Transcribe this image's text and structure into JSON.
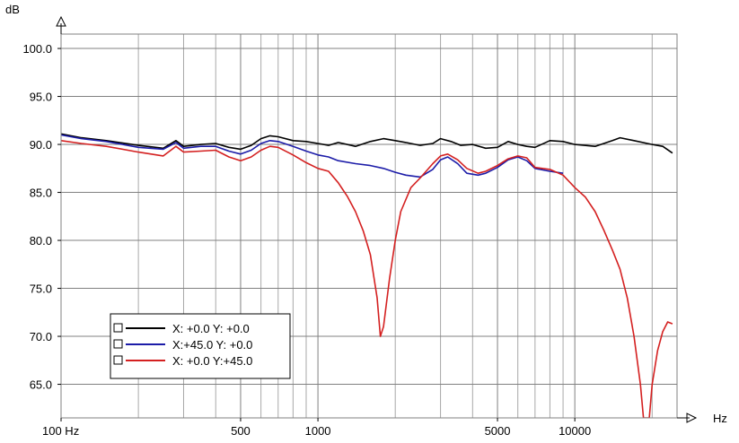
{
  "chart_data": {
    "type": "line",
    "ylabel": "dB",
    "xlabel": "Hz",
    "x_scale": "log",
    "xlim": [
      100,
      25000
    ],
    "ylim": [
      61.5,
      101.5
    ],
    "y_ticks": [
      {
        "value": 100,
        "label": "100.0"
      },
      {
        "value": 95,
        "label": "95.0"
      },
      {
        "value": 90,
        "label": "90.0"
      },
      {
        "value": 85,
        "label": "85.0"
      },
      {
        "value": 80,
        "label": "80.0"
      },
      {
        "value": 75,
        "label": "75.0"
      },
      {
        "value": 70,
        "label": "70.0"
      },
      {
        "value": 65,
        "label": "65.0"
      }
    ],
    "x_ticks": [
      {
        "value": 100,
        "label": "100 Hz"
      },
      {
        "value": 500,
        "label": "500"
      },
      {
        "value": 1000,
        "label": "1000"
      },
      {
        "value": 5000,
        "label": "5000"
      },
      {
        "value": 10000,
        "label": "10000"
      }
    ],
    "grid": true,
    "legend_position": "bottom-left",
    "series": [
      {
        "name": "X:  +0.0  Y:  +0.0",
        "color": "#000000",
        "points": [
          [
            100,
            91.1
          ],
          [
            120,
            90.7
          ],
          [
            150,
            90.4
          ],
          [
            200,
            89.9
          ],
          [
            250,
            89.6
          ],
          [
            280,
            90.4
          ],
          [
            300,
            89.8
          ],
          [
            350,
            90.0
          ],
          [
            400,
            90.1
          ],
          [
            450,
            89.7
          ],
          [
            500,
            89.5
          ],
          [
            550,
            89.9
          ],
          [
            600,
            90.6
          ],
          [
            650,
            90.9
          ],
          [
            700,
            90.8
          ],
          [
            800,
            90.4
          ],
          [
            900,
            90.3
          ],
          [
            1000,
            90.1
          ],
          [
            1100,
            89.9
          ],
          [
            1200,
            90.2
          ],
          [
            1400,
            89.8
          ],
          [
            1600,
            90.3
          ],
          [
            1800,
            90.6
          ],
          [
            2000,
            90.4
          ],
          [
            2200,
            90.2
          ],
          [
            2500,
            89.9
          ],
          [
            2800,
            90.1
          ],
          [
            3000,
            90.6
          ],
          [
            3300,
            90.3
          ],
          [
            3600,
            89.9
          ],
          [
            4000,
            90.0
          ],
          [
            4500,
            89.6
          ],
          [
            5000,
            89.7
          ],
          [
            5500,
            90.3
          ],
          [
            6000,
            90.0
          ],
          [
            6500,
            89.8
          ],
          [
            7000,
            89.7
          ],
          [
            8000,
            90.4
          ],
          [
            9000,
            90.3
          ],
          [
            10000,
            90.0
          ],
          [
            12000,
            89.8
          ],
          [
            14000,
            90.4
          ],
          [
            15000,
            90.7
          ],
          [
            17000,
            90.4
          ],
          [
            20000,
            90.0
          ],
          [
            22000,
            89.8
          ],
          [
            24000,
            89.1
          ]
        ]
      },
      {
        "name": "X:+45.0  Y:  +0.0",
        "color": "#1c1ca8",
        "points": [
          [
            100,
            91.0
          ],
          [
            120,
            90.6
          ],
          [
            150,
            90.3
          ],
          [
            200,
            89.7
          ],
          [
            250,
            89.5
          ],
          [
            280,
            90.2
          ],
          [
            300,
            89.6
          ],
          [
            350,
            89.8
          ],
          [
            400,
            89.8
          ],
          [
            450,
            89.3
          ],
          [
            500,
            89.0
          ],
          [
            550,
            89.4
          ],
          [
            600,
            90.1
          ],
          [
            650,
            90.4
          ],
          [
            700,
            90.3
          ],
          [
            800,
            89.8
          ],
          [
            900,
            89.3
          ],
          [
            1000,
            88.9
          ],
          [
            1100,
            88.7
          ],
          [
            1200,
            88.3
          ],
          [
            1400,
            88.0
          ],
          [
            1600,
            87.8
          ],
          [
            1800,
            87.5
          ],
          [
            2000,
            87.1
          ],
          [
            2200,
            86.8
          ],
          [
            2500,
            86.6
          ],
          [
            2800,
            87.4
          ],
          [
            3000,
            88.4
          ],
          [
            3200,
            88.7
          ],
          [
            3500,
            88.0
          ],
          [
            3800,
            87.0
          ],
          [
            4200,
            86.8
          ],
          [
            4500,
            87.0
          ],
          [
            5000,
            87.6
          ],
          [
            5500,
            88.4
          ],
          [
            6000,
            88.7
          ],
          [
            6500,
            88.3
          ],
          [
            7000,
            87.5
          ],
          [
            8000,
            87.2
          ],
          [
            9000,
            87.0
          ]
        ]
      },
      {
        "name": "X:  +0.0  Y:+45.0",
        "color": "#d42020",
        "points": [
          [
            100,
            90.4
          ],
          [
            120,
            90.1
          ],
          [
            150,
            89.8
          ],
          [
            200,
            89.2
          ],
          [
            250,
            88.8
          ],
          [
            280,
            89.8
          ],
          [
            300,
            89.2
          ],
          [
            350,
            89.3
          ],
          [
            400,
            89.4
          ],
          [
            450,
            88.7
          ],
          [
            500,
            88.3
          ],
          [
            550,
            88.7
          ],
          [
            600,
            89.4
          ],
          [
            650,
            89.8
          ],
          [
            700,
            89.7
          ],
          [
            800,
            88.9
          ],
          [
            900,
            88.1
          ],
          [
            1000,
            87.5
          ],
          [
            1100,
            87.2
          ],
          [
            1200,
            86.0
          ],
          [
            1300,
            84.6
          ],
          [
            1400,
            83.0
          ],
          [
            1500,
            81.0
          ],
          [
            1600,
            78.5
          ],
          [
            1700,
            74.0
          ],
          [
            1750,
            70.0
          ],
          [
            1800,
            71.0
          ],
          [
            1900,
            76.0
          ],
          [
            2000,
            80.0
          ],
          [
            2100,
            83.0
          ],
          [
            2300,
            85.5
          ],
          [
            2500,
            86.5
          ],
          [
            2800,
            88.0
          ],
          [
            3000,
            88.8
          ],
          [
            3200,
            89.0
          ],
          [
            3500,
            88.4
          ],
          [
            3800,
            87.5
          ],
          [
            4200,
            87.0
          ],
          [
            4500,
            87.2
          ],
          [
            5000,
            87.8
          ],
          [
            5500,
            88.5
          ],
          [
            6000,
            88.8
          ],
          [
            6500,
            88.6
          ],
          [
            7000,
            87.6
          ],
          [
            8000,
            87.4
          ],
          [
            9000,
            86.8
          ],
          [
            10000,
            85.5
          ],
          [
            11000,
            84.5
          ],
          [
            12000,
            83.0
          ],
          [
            13000,
            81.0
          ],
          [
            14000,
            79.0
          ],
          [
            15000,
            77.0
          ],
          [
            16000,
            74.0
          ],
          [
            17000,
            70.0
          ],
          [
            18000,
            65.0
          ],
          [
            18500,
            61.5
          ],
          [
            19500,
            61.5
          ],
          [
            20000,
            65.0
          ],
          [
            21000,
            68.5
          ],
          [
            22000,
            70.5
          ],
          [
            23000,
            71.5
          ],
          [
            24000,
            71.3
          ]
        ]
      }
    ]
  }
}
